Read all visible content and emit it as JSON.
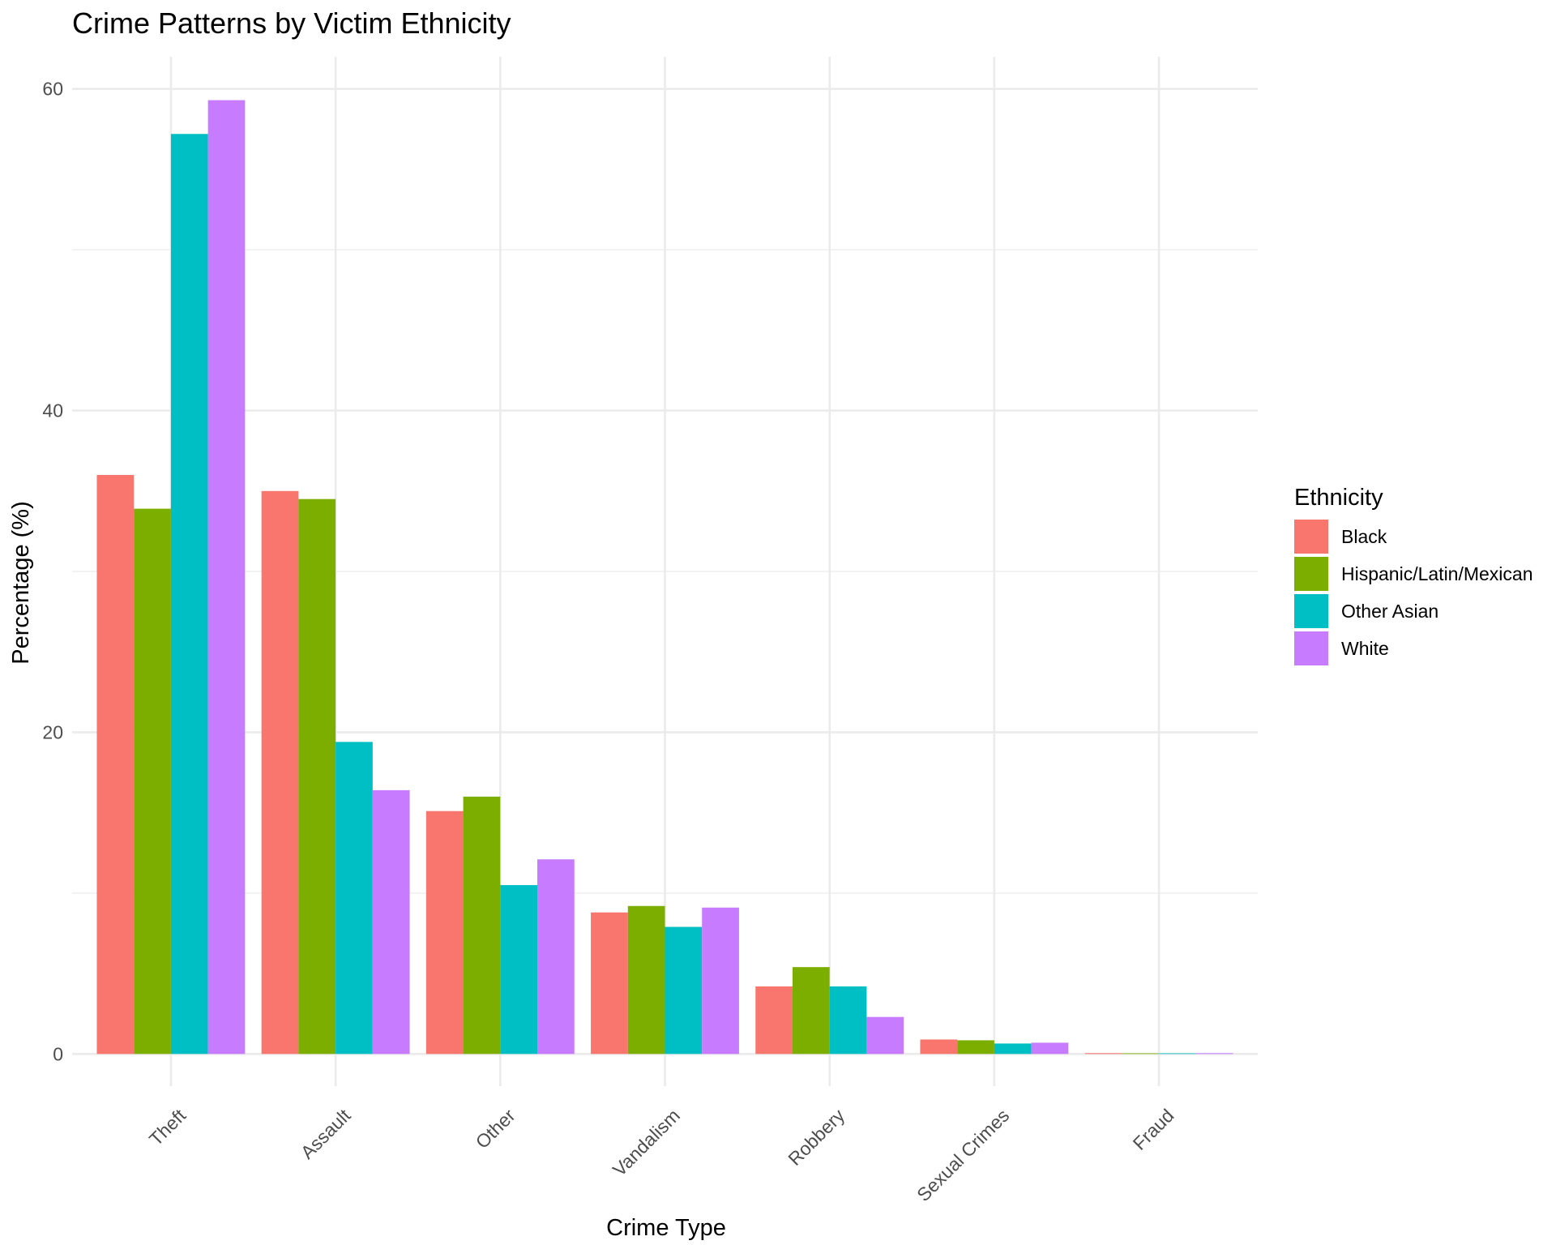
{
  "chart_data": {
    "type": "bar",
    "title": "Crime Patterns by Victim Ethnicity",
    "xlabel": "Crime Type",
    "ylabel": "Percentage (%)",
    "ylim": [
      -2.0,
      62.0
    ],
    "yticks": [
      0,
      20,
      40,
      60
    ],
    "grid": true,
    "legend": {
      "title": "Ethnicity",
      "position": "right"
    },
    "categories": [
      "Theft",
      "Assault",
      "Other",
      "Vandalism",
      "Robbery",
      "Sexual Crimes",
      "Fraud"
    ],
    "series": [
      {
        "name": "Black",
        "color": "#F8766D",
        "values": [
          36.0,
          35.0,
          15.1,
          8.8,
          4.2,
          0.9,
          0.05
        ]
      },
      {
        "name": "Hispanic/Latin/Mexican",
        "color": "#7CAE00",
        "values": [
          33.9,
          34.5,
          16.0,
          9.2,
          5.4,
          0.85,
          0.04
        ]
      },
      {
        "name": "Other Asian",
        "color": "#00BFC4",
        "values": [
          57.2,
          19.4,
          10.5,
          7.9,
          4.2,
          0.65,
          0.03
        ]
      },
      {
        "name": "White",
        "color": "#C77CFF",
        "values": [
          59.3,
          16.4,
          12.1,
          9.1,
          2.3,
          0.7,
          0.05
        ]
      }
    ]
  }
}
